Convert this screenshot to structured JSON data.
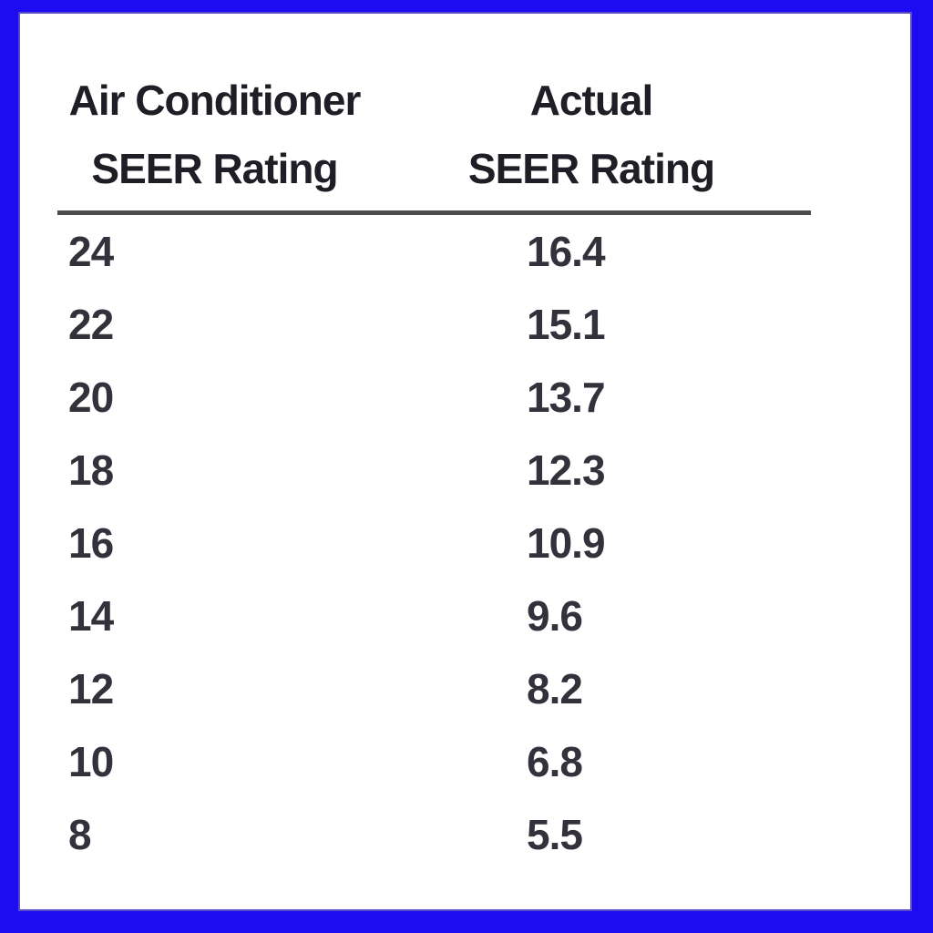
{
  "chart_data": {
    "type": "table",
    "title": "",
    "columns": [
      "Air Conditioner SEER Rating",
      "Actual SEER Rating"
    ],
    "header_lines": {
      "col1": [
        "Air Conditioner",
        "SEER Rating"
      ],
      "col2": [
        "Actual",
        "SEER Rating"
      ]
    },
    "rows": [
      [
        "24",
        "16.4"
      ],
      [
        "22",
        "15.1"
      ],
      [
        "20",
        "13.7"
      ],
      [
        "18",
        "12.3"
      ],
      [
        "16",
        "10.9"
      ],
      [
        "14",
        "9.6"
      ],
      [
        "12",
        "8.2"
      ],
      [
        "10",
        "6.8"
      ],
      [
        "8",
        "5.5"
      ]
    ]
  },
  "colors": {
    "frame_blue": "#1d0bf2",
    "inner_edge": "#544bc9",
    "rule_gray": "#4d4d4d",
    "text_dark": "#26262e",
    "background": "#ffffff"
  }
}
